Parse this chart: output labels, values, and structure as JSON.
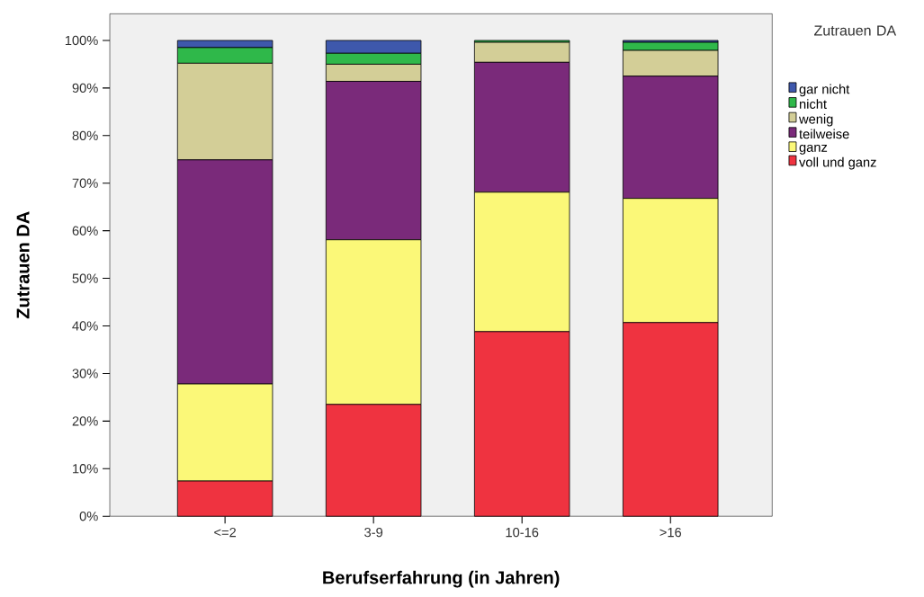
{
  "chart_data": {
    "type": "bar",
    "stacked": true,
    "xlabel": "Berufserfahrung (in Jahren)",
    "ylabel": "Zutrauen DA",
    "legend_title": "Zutrauen DA",
    "legend": "right",
    "categories": [
      "<=2",
      "3-9",
      "10-16",
      ">16"
    ],
    "ylim": [
      0,
      105.6
    ],
    "yticks": [
      {
        "value": 0,
        "label": "0%"
      },
      {
        "value": 10,
        "label": "10%"
      },
      {
        "value": 20,
        "label": "20%"
      },
      {
        "value": 30,
        "label": "30%"
      },
      {
        "value": 40,
        "label": "40%"
      },
      {
        "value": 50,
        "label": "50%"
      },
      {
        "value": 60,
        "label": "60%"
      },
      {
        "value": 70,
        "label": "70%"
      },
      {
        "value": 80,
        "label": "80%"
      },
      {
        "value": 90,
        "label": "90%"
      },
      {
        "value": 100,
        "label": "100%"
      }
    ],
    "series": [
      {
        "name": "voll und ganz",
        "color": "#ef3340",
        "values": [
          7.4,
          23.5,
          38.8,
          40.7
        ]
      },
      {
        "name": "ganz",
        "color": "#fbf878",
        "values": [
          20.4,
          34.6,
          29.3,
          26.1
        ]
      },
      {
        "name": "teilweise",
        "color": "#7a2a7a",
        "values": [
          47.1,
          33.3,
          27.3,
          25.7
        ]
      },
      {
        "name": "wenig",
        "color": "#d3ce97",
        "values": [
          20.3,
          3.6,
          4.2,
          5.4
        ]
      },
      {
        "name": "nicht",
        "color": "#2fb84a",
        "values": [
          3.3,
          2.3,
          0.4,
          1.7
        ]
      },
      {
        "name": "gar nicht",
        "color": "#3e58ac",
        "values": [
          1.5,
          2.7,
          0,
          0.4
        ]
      }
    ]
  }
}
